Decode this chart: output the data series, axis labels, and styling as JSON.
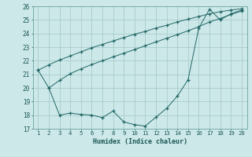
{
  "background_color": "#cce8e8",
  "grid_color": "#aacccc",
  "line_color": "#226666",
  "xlabel": "Humidex (Indice chaleur)",
  "ylim": [
    17,
    26
  ],
  "xlim": [
    0.5,
    20.5
  ],
  "yticks": [
    17,
    18,
    19,
    20,
    21,
    22,
    23,
    24,
    25,
    26
  ],
  "xticks": [
    1,
    2,
    3,
    4,
    5,
    6,
    7,
    8,
    9,
    10,
    11,
    12,
    13,
    14,
    15,
    16,
    17,
    18,
    19,
    20
  ],
  "line1_x": [
    1,
    2,
    3,
    4,
    5,
    6,
    7,
    8,
    9,
    10,
    11,
    12,
    13,
    14,
    15,
    16,
    17,
    18,
    19,
    20
  ],
  "line1_y": [
    21.3,
    21.7,
    22.05,
    22.35,
    22.65,
    22.95,
    23.2,
    23.45,
    23.7,
    23.95,
    24.15,
    24.4,
    24.6,
    24.85,
    25.05,
    25.25,
    25.45,
    25.6,
    25.72,
    25.82
  ],
  "line2_x": [
    2,
    3,
    4,
    5,
    6,
    7,
    8,
    9,
    10,
    11,
    12,
    13,
    14,
    15,
    16,
    17,
    18,
    19,
    20
  ],
  "line2_y": [
    20.0,
    20.55,
    21.05,
    21.4,
    21.72,
    22.0,
    22.28,
    22.55,
    22.82,
    23.1,
    23.38,
    23.65,
    23.92,
    24.2,
    24.5,
    24.85,
    25.1,
    25.4,
    25.65
  ],
  "line3_x": [
    1,
    2,
    3,
    4,
    5,
    6,
    7,
    8,
    9,
    10,
    11,
    12,
    13,
    14,
    15,
    16,
    17,
    18,
    19,
    20
  ],
  "line3_y": [
    21.3,
    20.0,
    18.0,
    18.15,
    18.05,
    18.0,
    17.82,
    18.3,
    17.5,
    17.3,
    17.2,
    17.85,
    18.5,
    19.4,
    20.6,
    24.4,
    25.78,
    25.0,
    25.45,
    25.72
  ]
}
